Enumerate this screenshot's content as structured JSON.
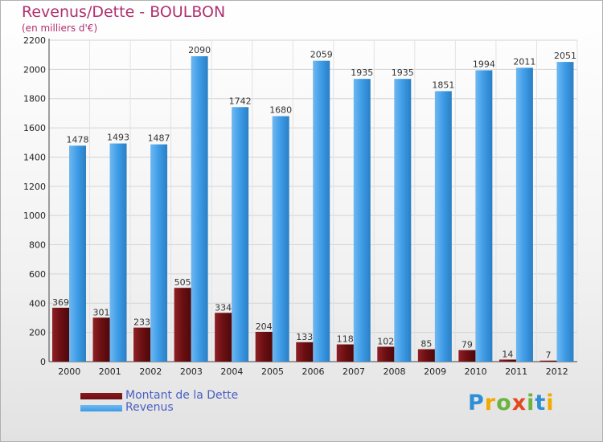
{
  "title": "Revenus/Dette - BOULBON",
  "subtitle": "(en milliers d'€)",
  "colors": {
    "dette": "#6b0f12",
    "revenus": "#3d9be6",
    "title": "#b03070"
  },
  "legend": {
    "items": [
      {
        "label": "Montant de la Dette"
      },
      {
        "label": "Revenus"
      }
    ]
  },
  "logo": {
    "text": "Proxiti",
    "letters": [
      "P",
      "r",
      "o",
      "x",
      "i",
      "t",
      "i"
    ],
    "letter_colors": [
      "#2f8fd6",
      "#f2a900",
      "#6cb33f",
      "#e24a1e",
      "#6cb33f",
      "#2f8fd6",
      "#f2a900"
    ]
  },
  "chart_data": {
    "type": "bar",
    "title": "Revenus/Dette - BOULBON",
    "subtitle": "(en milliers d'€)",
    "categories": [
      "2000",
      "2001",
      "2002",
      "2003",
      "2004",
      "2005",
      "2006",
      "2007",
      "2008",
      "2009",
      "2010",
      "2011",
      "2012"
    ],
    "series": [
      {
        "name": "Montant de la Dette",
        "values": [
          369,
          301,
          233,
          505,
          334,
          204,
          133,
          118,
          102,
          85,
          79,
          14,
          7
        ]
      },
      {
        "name": "Revenus",
        "values": [
          1478,
          1493,
          1487,
          2090,
          1742,
          1680,
          2059,
          1935,
          1935,
          1851,
          1994,
          2011,
          2051
        ]
      }
    ],
    "ylim": [
      0,
      2200
    ],
    "yticks": [
      "0",
      "200",
      "400",
      "600",
      "800",
      "1000",
      "1200",
      "1400",
      "1600",
      "1800",
      "2000",
      "2200"
    ],
    "grid": true,
    "legend_position": "bottom-left",
    "xlabel": "",
    "ylabel": ""
  }
}
